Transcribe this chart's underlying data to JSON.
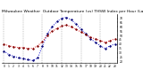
{
  "title": "Milwaukee Weather  Outdoor Temperature (vs) THSW Index per Hour (Last 24 Hours)",
  "hours": [
    0,
    1,
    2,
    3,
    4,
    5,
    6,
    7,
    8,
    9,
    10,
    11,
    12,
    13,
    14,
    15,
    16,
    17,
    18,
    19,
    20,
    21,
    22,
    23
  ],
  "temp": [
    40,
    38,
    37,
    36,
    36,
    35,
    35,
    38,
    43,
    50,
    55,
    58,
    61,
    62,
    60,
    57,
    54,
    51,
    48,
    46,
    44,
    42,
    44,
    46
  ],
  "thsw": [
    32,
    28,
    26,
    24,
    23,
    22,
    21,
    24,
    38,
    52,
    60,
    66,
    70,
    71,
    68,
    63,
    57,
    52,
    46,
    42,
    38,
    35,
    38,
    40
  ],
  "temp_color": "#dd0000",
  "thsw_color": "#0000cc",
  "black_color": "#000000",
  "bg_color": "#ffffff",
  "grid_color": "#888888",
  "ylim_min": 18,
  "ylim_max": 75,
  "yticks": [
    20,
    25,
    30,
    35,
    40,
    45,
    50,
    55,
    60,
    65,
    70
  ],
  "grid_x": [
    0,
    4,
    8,
    12,
    16,
    20
  ],
  "title_fontsize": 3.2,
  "tick_fontsize": 2.2,
  "linewidth": 0.7,
  "markersize": 1.2
}
